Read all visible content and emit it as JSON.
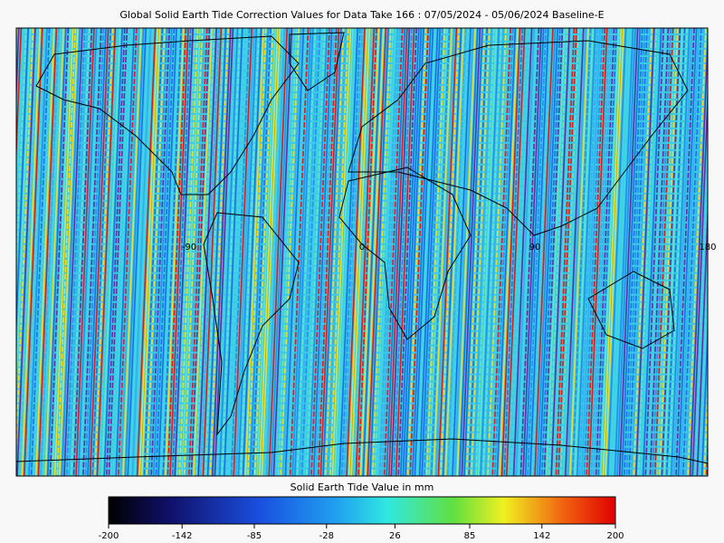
{
  "title": "Global Solid Earth Tide Correction Values for Data Take 166 : 07/05/2024 - 05/06/2024 Baseline-E",
  "map": {
    "lon_range": [
      -180,
      180
    ],
    "lon_labels": [
      -90,
      0,
      90,
      180
    ]
  },
  "colorbar": {
    "label": "Solid Earth Tide Value in mm",
    "lim": [
      -200,
      200
    ],
    "ticks": [
      -200,
      -142,
      -85,
      -28,
      26,
      85,
      142,
      200
    ]
  }
}
